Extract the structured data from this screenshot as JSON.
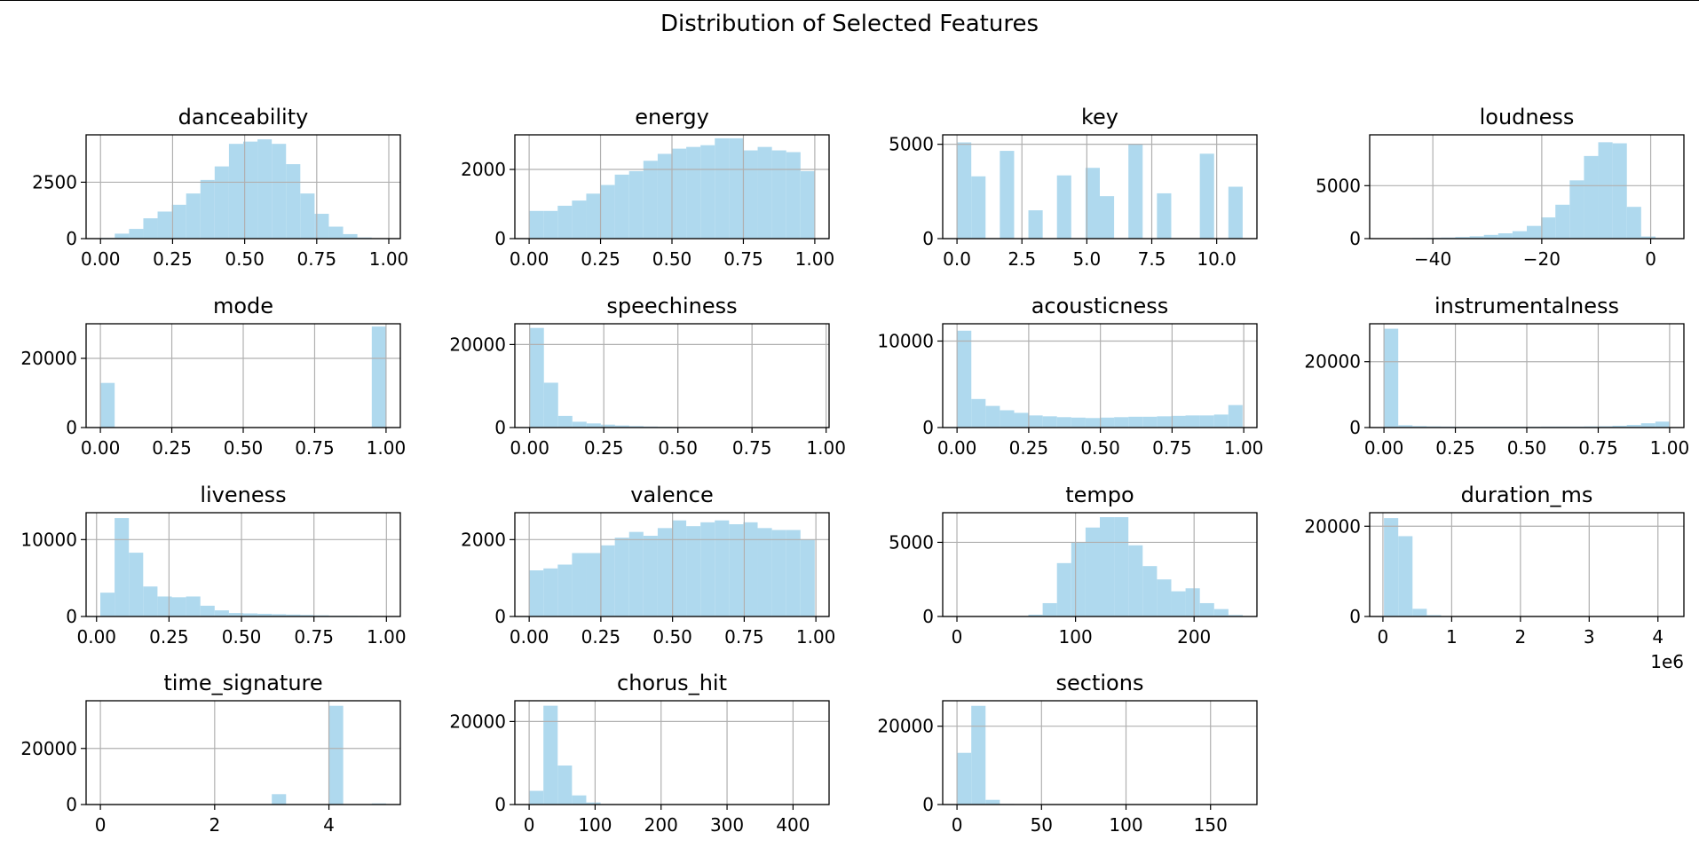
{
  "figure": {
    "suptitle": "Distribution of Selected Features",
    "bar_color": "#afd9ee",
    "grid_color": "#b0b0b0"
  },
  "chart_data": [
    {
      "type": "bar",
      "title": "danceability",
      "x_bin_start": 0.0,
      "x_bin_end": 0.99,
      "values": [
        30,
        220,
        430,
        900,
        1200,
        1500,
        2000,
        2600,
        3200,
        4200,
        4300,
        4400,
        4200,
        3300,
        2000,
        1100,
        530,
        200,
        50,
        5
      ],
      "xlim": [
        -0.05,
        1.04
      ],
      "ylim": [
        0,
        4600
      ],
      "xticks": [
        0,
        0.25,
        0.5,
        0.75,
        1.0
      ],
      "xtick_labels": [
        "0.00",
        "0.25",
        "0.50",
        "0.75",
        "1.00"
      ],
      "yticks": [
        0,
        2500
      ],
      "ytick_labels": [
        "0",
        "2500"
      ],
      "offset_label": ""
    },
    {
      "type": "bar",
      "title": "energy",
      "x_bin_start": 0.0,
      "x_bin_end": 1.0,
      "values": [
        800,
        800,
        950,
        1100,
        1300,
        1550,
        1850,
        1950,
        2250,
        2450,
        2600,
        2650,
        2700,
        2900,
        2900,
        2550,
        2650,
        2550,
        2500,
        1950
      ],
      "xlim": [
        -0.05,
        1.05
      ],
      "ylim": [
        0,
        3000
      ],
      "xticks": [
        0,
        0.25,
        0.5,
        0.75,
        1.0
      ],
      "xtick_labels": [
        "0.00",
        "0.25",
        "0.50",
        "0.75",
        "1.00"
      ],
      "yticks": [
        0,
        2000
      ],
      "ytick_labels": [
        "0",
        "2000"
      ],
      "offset_label": ""
    },
    {
      "type": "bar",
      "title": "key",
      "x_bin_start": 0,
      "x_bin_end": 11,
      "values": [
        5100,
        3300,
        0,
        4650,
        0,
        1500,
        0,
        3350,
        0,
        3750,
        2250,
        0,
        5000,
        0,
        2400,
        0,
        0,
        4500,
        0,
        2750
      ],
      "xlim": [
        -0.55,
        11.55
      ],
      "ylim": [
        0,
        5500
      ],
      "xticks": [
        0,
        2.5,
        5,
        7.5,
        10
      ],
      "xtick_labels": [
        "0.0",
        "2.5",
        "5.0",
        "7.5",
        "10.0"
      ],
      "yticks": [
        0,
        5000
      ],
      "ytick_labels": [
        "0",
        "5000"
      ],
      "offset_label": ""
    },
    {
      "type": "bar",
      "title": "loudness",
      "x_bin_start": -49,
      "x_bin_end": 3.5,
      "values": [
        20,
        40,
        60,
        80,
        100,
        150,
        220,
        350,
        500,
        700,
        1200,
        2000,
        3200,
        5500,
        7800,
        9100,
        9000,
        3000,
        200,
        50
      ],
      "xlim": [
        -51.6,
        6.1
      ],
      "ylim": [
        0,
        9800
      ],
      "xticks": [
        -40,
        -20,
        0
      ],
      "xtick_labels": [
        "−40",
        "−20",
        "0"
      ],
      "yticks": [
        0,
        5000
      ],
      "ytick_labels": [
        "0",
        "5000"
      ],
      "offset_label": ""
    },
    {
      "type": "bar",
      "title": "mode",
      "x_bin_start": 0,
      "x_bin_end": 1,
      "values": [
        12900,
        0,
        0,
        0,
        0,
        0,
        0,
        0,
        0,
        0,
        0,
        0,
        0,
        0,
        0,
        0,
        0,
        0,
        0,
        29200
      ],
      "xlim": [
        -0.05,
        1.05
      ],
      "ylim": [
        0,
        30000
      ],
      "xticks": [
        0,
        0.25,
        0.5,
        0.75,
        1.0
      ],
      "xtick_labels": [
        "0.00",
        "0.25",
        "0.50",
        "0.75",
        "1.00"
      ],
      "yticks": [
        0,
        20000
      ],
      "ytick_labels": [
        "0",
        "20000"
      ],
      "offset_label": ""
    },
    {
      "type": "bar",
      "title": "speechiness",
      "x_bin_start": 0.0,
      "x_bin_end": 0.96,
      "values": [
        24000,
        10800,
        2800,
        1400,
        1000,
        700,
        500,
        350,
        250,
        180,
        120,
        80,
        60,
        40,
        20,
        15,
        10,
        5,
        5,
        20
      ],
      "xlim": [
        -0.05,
        1.01
      ],
      "ylim": [
        0,
        25000
      ],
      "xticks": [
        0,
        0.25,
        0.5,
        0.75,
        1.0
      ],
      "xtick_labels": [
        "0.00",
        "0.25",
        "0.50",
        "0.75",
        "1.00"
      ],
      "yticks": [
        0,
        20000
      ],
      "ytick_labels": [
        "0",
        "20000"
      ],
      "offset_label": ""
    },
    {
      "type": "bar",
      "title": "acousticness",
      "x_bin_start": 0.0,
      "x_bin_end": 0.996,
      "values": [
        11200,
        3300,
        2500,
        2000,
        1700,
        1400,
        1300,
        1200,
        1150,
        1100,
        1150,
        1200,
        1250,
        1250,
        1300,
        1350,
        1400,
        1400,
        1500,
        2600
      ],
      "xlim": [
        -0.05,
        1.046
      ],
      "ylim": [
        0,
        12000
      ],
      "xticks": [
        0,
        0.25,
        0.5,
        0.75,
        1.0
      ],
      "xtick_labels": [
        "0.00",
        "0.25",
        "0.50",
        "0.75",
        "1.00"
      ],
      "yticks": [
        0,
        10000
      ],
      "ytick_labels": [
        "0",
        "10000"
      ],
      "offset_label": ""
    },
    {
      "type": "bar",
      "title": "instrumentalness",
      "x_bin_start": 0.0,
      "x_bin_end": 1.0,
      "values": [
        30000,
        700,
        450,
        350,
        300,
        250,
        250,
        250,
        250,
        250,
        250,
        300,
        300,
        300,
        350,
        400,
        550,
        800,
        1300,
        1800
      ],
      "xlim": [
        -0.05,
        1.05
      ],
      "ylim": [
        0,
        31500
      ],
      "xticks": [
        0,
        0.25,
        0.5,
        0.75,
        1.0
      ],
      "xtick_labels": [
        "0.00",
        "0.25",
        "0.50",
        "0.75",
        "1.00"
      ],
      "yticks": [
        0,
        20000
      ],
      "ytick_labels": [
        "0",
        "20000"
      ],
      "offset_label": ""
    },
    {
      "type": "bar",
      "title": "liveness",
      "x_bin_start": 0.013,
      "x_bin_end": 0.999,
      "values": [
        3100,
        12800,
        8300,
        3900,
        2600,
        2500,
        2600,
        1400,
        800,
        450,
        400,
        350,
        300,
        250,
        200,
        150,
        100,
        100,
        80,
        60
      ],
      "xlim": [
        -0.036,
        1.048
      ],
      "ylim": [
        0,
        13500
      ],
      "xticks": [
        0,
        0.25,
        0.5,
        0.75,
        1.0
      ],
      "xtick_labels": [
        "0.00",
        "0.25",
        "0.50",
        "0.75",
        "1.00"
      ],
      "yticks": [
        0,
        10000
      ],
      "ytick_labels": [
        "0",
        "10000"
      ],
      "offset_label": ""
    },
    {
      "type": "bar",
      "title": "valence",
      "x_bin_start": 0.0,
      "x_bin_end": 0.996,
      "values": [
        1200,
        1250,
        1350,
        1650,
        1650,
        1850,
        2050,
        2200,
        2100,
        2300,
        2500,
        2350,
        2450,
        2500,
        2400,
        2450,
        2300,
        2250,
        2250,
        2000
      ],
      "xlim": [
        -0.05,
        1.046
      ],
      "ylim": [
        0,
        2700
      ],
      "xticks": [
        0,
        0.25,
        0.5,
        0.75,
        1.0
      ],
      "xtick_labels": [
        "0.00",
        "0.25",
        "0.50",
        "0.75",
        "1.00"
      ],
      "yticks": [
        0,
        2000
      ],
      "ytick_labels": [
        "0",
        "2000"
      ],
      "offset_label": ""
    },
    {
      "type": "bar",
      "title": "tempo",
      "x_bin_start": 0,
      "x_bin_end": 241,
      "values": [
        20,
        5,
        5,
        10,
        30,
        120,
        900,
        3600,
        5000,
        6000,
        6700,
        6700,
        4800,
        3400,
        2500,
        1700,
        1900,
        900,
        500,
        100
      ],
      "xlim": [
        -12,
        253
      ],
      "ylim": [
        0,
        7000
      ],
      "xticks": [
        0,
        100,
        200
      ],
      "xtick_labels": [
        "0",
        "100",
        "200"
      ],
      "yticks": [
        0,
        5000
      ],
      "ytick_labels": [
        "0",
        "5000"
      ],
      "offset_label": ""
    },
    {
      "type": "bar",
      "title": "duration_ms",
      "x_bin_start": 15000,
      "x_bin_end": 4170000,
      "values": [
        21800,
        17800,
        1700,
        300,
        100,
        50,
        30,
        20,
        10,
        10,
        5,
        5,
        5,
        5,
        5,
        5,
        5,
        5,
        5,
        5
      ],
      "xlim": [
        -192750,
        4377750
      ],
      "ylim": [
        0,
        23000
      ],
      "xticks": [
        0,
        1000000,
        2000000,
        3000000,
        4000000
      ],
      "xtick_labels": [
        "0",
        "1",
        "2",
        "3",
        "4"
      ],
      "yticks": [
        0,
        20000
      ],
      "ytick_labels": [
        "0",
        "20000"
      ],
      "offset_label": "1e6"
    },
    {
      "type": "bar",
      "title": "time_signature",
      "x_bin_start": 0,
      "x_bin_end": 5,
      "values": [
        10,
        0,
        0,
        0,
        0,
        0,
        0,
        0,
        0,
        0,
        0,
        0,
        3700,
        0,
        0,
        0,
        35200,
        0,
        0,
        400
      ],
      "xlim": [
        -0.25,
        5.25
      ],
      "ylim": [
        0,
        37000
      ],
      "xticks": [
        0,
        2,
        4
      ],
      "xtick_labels": [
        "0",
        "2",
        "4"
      ],
      "yticks": [
        0,
        20000
      ],
      "ytick_labels": [
        "0",
        "20000"
      ],
      "offset_label": ""
    },
    {
      "type": "bar",
      "title": "chorus_hit",
      "x_bin_start": 0,
      "x_bin_end": 433,
      "values": [
        3300,
        23800,
        9400,
        2200,
        500,
        120,
        50,
        20,
        10,
        5,
        5,
        5,
        5,
        5,
        5,
        5,
        5,
        5,
        5,
        5
      ],
      "xlim": [
        -21.65,
        454.65
      ],
      "ylim": [
        0,
        25000
      ],
      "xticks": [
        0,
        100,
        200,
        300,
        400
      ],
      "xtick_labels": [
        "0",
        "100",
        "200",
        "300",
        "400"
      ],
      "yticks": [
        0,
        20000
      ],
      "ytick_labels": [
        "0",
        "20000"
      ],
      "offset_label": ""
    },
    {
      "type": "bar",
      "title": "sections",
      "x_bin_start": 0,
      "x_bin_end": 169,
      "values": [
        13200,
        25200,
        1200,
        150,
        40,
        20,
        10,
        5,
        5,
        5,
        5,
        5,
        5,
        5,
        5,
        5,
        5,
        5,
        5,
        5
      ],
      "xlim": [
        -8.45,
        177.45
      ],
      "ylim": [
        0,
        26500
      ],
      "xticks": [
        0,
        50,
        100,
        150
      ],
      "xtick_labels": [
        "0",
        "50",
        "100",
        "150"
      ],
      "yticks": [
        0,
        20000
      ],
      "ytick_labels": [
        "0",
        "20000"
      ],
      "offset_label": ""
    }
  ]
}
